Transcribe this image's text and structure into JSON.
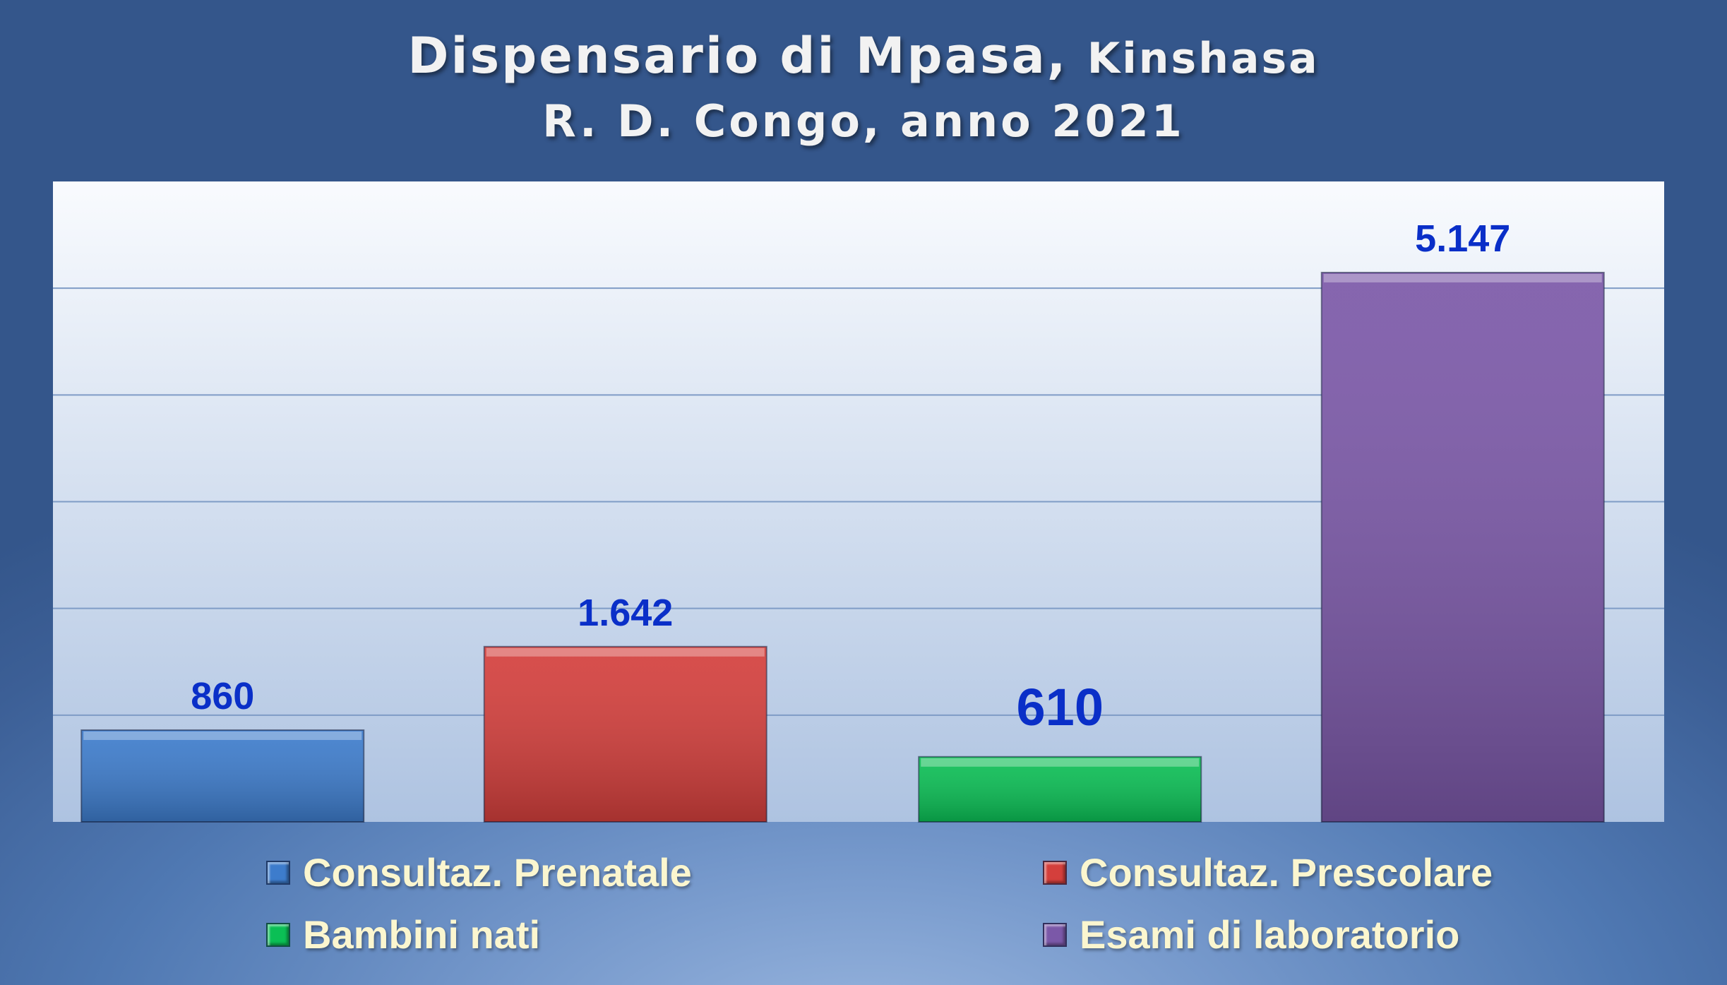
{
  "chart_data": {
    "type": "bar",
    "title_main": "Dispensario di Mpasa,",
    "title_place": "Kinshasa",
    "subtitle": "R. D. Congo, anno 2021",
    "categories": [
      "Consultaz. Prenatale",
      "Consultaz. Prescolare",
      "Bambini nati",
      "Esami di laboratorio"
    ],
    "values": [
      860,
      1642,
      610,
      5147
    ],
    "value_labels": [
      "860",
      "1.642",
      "610",
      "5.147"
    ],
    "colors": [
      "#3d7ccc",
      "#d43f3c",
      "#0bbf55",
      "#7b58a8"
    ],
    "ylim": [
      0,
      6000
    ],
    "gridlines": true,
    "legend_position": "bottom"
  }
}
